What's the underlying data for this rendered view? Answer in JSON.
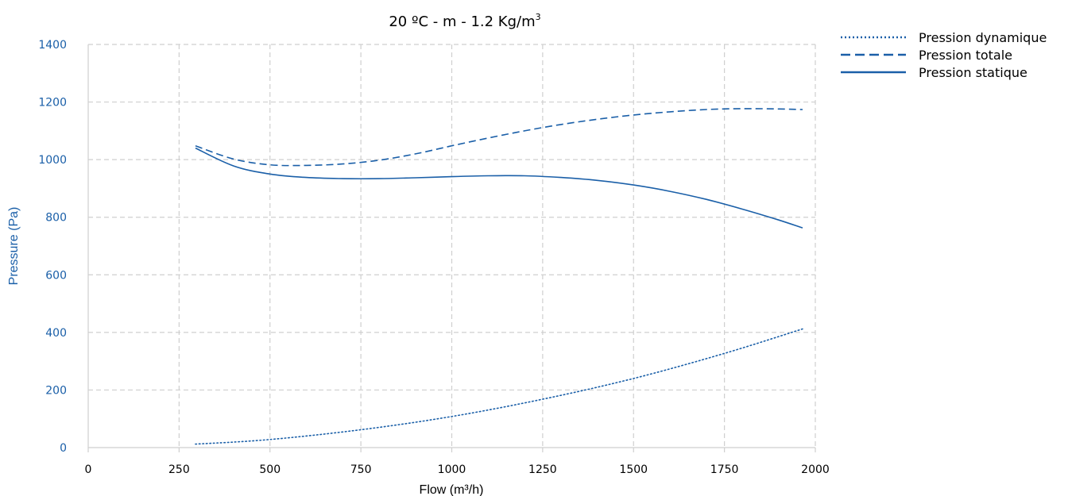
{
  "chart_data": {
    "type": "line",
    "title": "20 ºC - m - 1.2 Kg/m",
    "title_superscript": "3",
    "xlabel": "Flow (m³/h)",
    "ylabel": "Pressure (Pa)",
    "xlim": [
      0,
      2000
    ],
    "ylim": [
      0,
      1400
    ],
    "xticks": [
      "0",
      "250",
      "500",
      "750",
      "1000",
      "1250",
      "1500",
      "1750",
      "2000"
    ],
    "yticks": [
      "0",
      "200",
      "400",
      "600",
      "800",
      "1000",
      "1200",
      "1400"
    ],
    "grid": true,
    "legend_position": "top-right",
    "colors": {
      "series": "#1a5fa8",
      "ytick": "#1a5fa8",
      "grid": "#cfcfcf"
    },
    "series": [
      {
        "name": "Pression dynamique",
        "style": "dotted",
        "x": [
          295,
          500,
          750,
          1000,
          1250,
          1500,
          1750,
          1965
        ],
        "y": [
          12,
          28,
          62,
          108,
          168,
          240,
          327,
          412
        ]
      },
      {
        "name": "Pression totale",
        "style": "dashed",
        "x": [
          295,
          400,
          500,
          600,
          700,
          800,
          900,
          1000,
          1100,
          1200,
          1300,
          1400,
          1500,
          1600,
          1700,
          1800,
          1900,
          1965
        ],
        "y": [
          1048,
          1002,
          982,
          980,
          985,
          998,
          1020,
          1048,
          1075,
          1100,
          1122,
          1140,
          1155,
          1166,
          1174,
          1177,
          1176,
          1174
        ]
      },
      {
        "name": "Pression statique",
        "style": "solid",
        "x": [
          295,
          400,
          500,
          600,
          700,
          800,
          900,
          1000,
          1100,
          1200,
          1300,
          1400,
          1500,
          1600,
          1700,
          1800,
          1900,
          1965
        ],
        "y": [
          1040,
          978,
          950,
          938,
          934,
          934,
          937,
          941,
          944,
          944,
          938,
          928,
          912,
          890,
          862,
          828,
          790,
          763
        ]
      }
    ]
  }
}
